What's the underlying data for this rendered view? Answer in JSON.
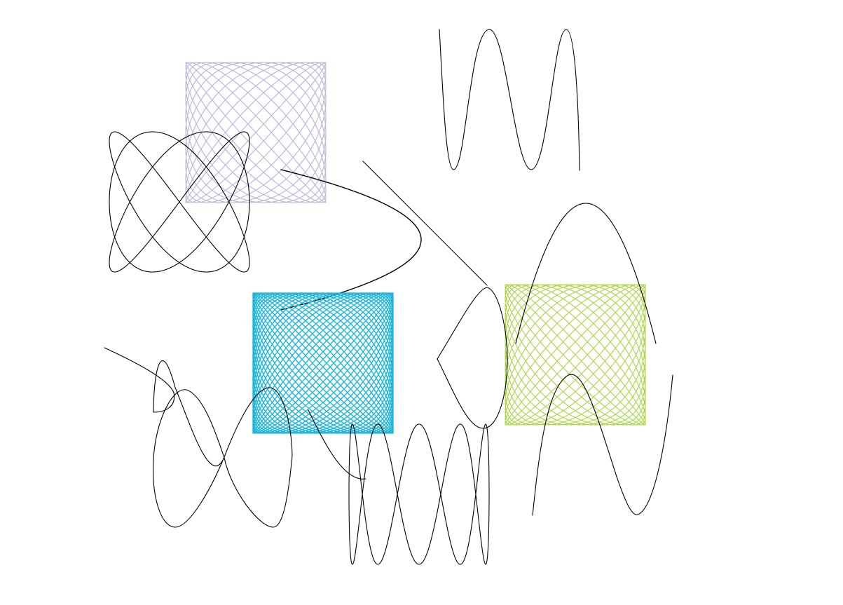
{
  "canvas": {
    "background": "#ffffff"
  },
  "figures": [
    {
      "kind": "lissajous",
      "name": "violet-lissajous-square",
      "color": "#b7b3da",
      "freq_x": 13,
      "freq_y": 14,
      "stroke": "thin"
    },
    {
      "kind": "lissajous",
      "name": "black-lissajous-left",
      "color": "#000000",
      "freq_x": 3,
      "freq_y": 4,
      "stroke": "thin"
    },
    {
      "kind": "lissajous",
      "name": "black-figure-eight-center",
      "color": "#000000",
      "freq_x": 2,
      "freq_y": 1,
      "stroke": "medium"
    },
    {
      "kind": "wave",
      "name": "black-wave-top-right",
      "color": "#000000",
      "cycles": 2.1,
      "stroke": "thin"
    },
    {
      "kind": "line",
      "name": "black-diagonal-line",
      "color": "#000000",
      "stroke": "thin"
    },
    {
      "kind": "lissajous",
      "name": "cyan-lissajous-dense",
      "color": "#1eb6dc",
      "freq_x": 29,
      "freq_y": 31,
      "stroke": "medium"
    },
    {
      "kind": "lissajous",
      "name": "lime-lissajous",
      "color": "#a8d642",
      "freq_x": 17,
      "freq_y": 18,
      "stroke": "thin"
    },
    {
      "kind": "lissajous",
      "name": "black-lissajous-right",
      "color": "#000000",
      "freq_x": 1,
      "freq_y": 2,
      "stroke": "thin"
    },
    {
      "kind": "curve",
      "name": "black-arc-right",
      "color": "#000000",
      "stroke": "thin"
    },
    {
      "kind": "curve",
      "name": "black-wave-bottom-left",
      "color": "#000000",
      "stroke": "thin"
    },
    {
      "kind": "curve",
      "name": "black-hook-bottom-left",
      "color": "#000000",
      "stroke": "thin"
    },
    {
      "kind": "lissajous",
      "name": "black-lissajous-bottom-center",
      "color": "#000000",
      "freq_x": 1,
      "freq_y": 5,
      "stroke": "thin"
    },
    {
      "kind": "curve",
      "name": "black-wave-bottom-right",
      "color": "#000000",
      "stroke": "thin"
    },
    {
      "kind": "curve",
      "name": "black-short-curve-center",
      "color": "#000000",
      "stroke": "thin"
    }
  ]
}
